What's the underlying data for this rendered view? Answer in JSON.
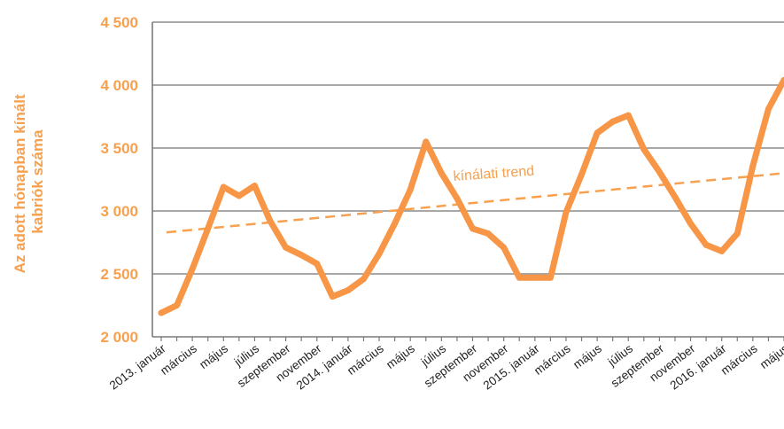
{
  "chart_data": {
    "type": "line",
    "ylabel_lines": [
      "Az adott hónapban kínált",
      "kabriók száma"
    ],
    "ylim": [
      2000,
      4500
    ],
    "yticks": [
      2000,
      2500,
      3000,
      3500,
      4000,
      4500
    ],
    "ytick_labels": [
      "2 000",
      "2 500",
      "3 000",
      "3 500",
      "4 000",
      "4 500"
    ],
    "grid": true,
    "tick_labels": [
      "2013. január",
      "március",
      "május",
      "július",
      "szeptember",
      "november",
      "2014. január",
      "március",
      "május",
      "július",
      "szeptember",
      "november",
      "2015. január",
      "március",
      "május",
      "július",
      "szeptember",
      "november",
      "2016. január",
      "március",
      "május"
    ],
    "tick_indices": [
      0,
      2,
      4,
      6,
      8,
      10,
      12,
      14,
      16,
      18,
      20,
      22,
      24,
      26,
      28,
      30,
      32,
      34,
      36,
      38,
      40
    ],
    "series": [
      {
        "name": "",
        "color": "#F79646",
        "values": [
          2190,
          2250,
          2540,
          2860,
          3190,
          3120,
          3200,
          2920,
          2710,
          2650,
          2580,
          2320,
          2370,
          2460,
          2660,
          2900,
          3170,
          3550,
          3300,
          3100,
          2860,
          2820,
          2710,
          2470,
          2470,
          2470,
          2990,
          3290,
          3620,
          3710,
          3760,
          3490,
          3310,
          3110,
          2900,
          2730,
          2680,
          2820,
          3360,
          3810,
          4040
        ]
      },
      {
        "name": "kínálati trend",
        "color": "#F7A04E",
        "dashed": true,
        "start": 2830,
        "end": 3300
      }
    ],
    "annotations": [
      {
        "text": "kínálati trend",
        "color": "#F7A04E"
      }
    ]
  }
}
